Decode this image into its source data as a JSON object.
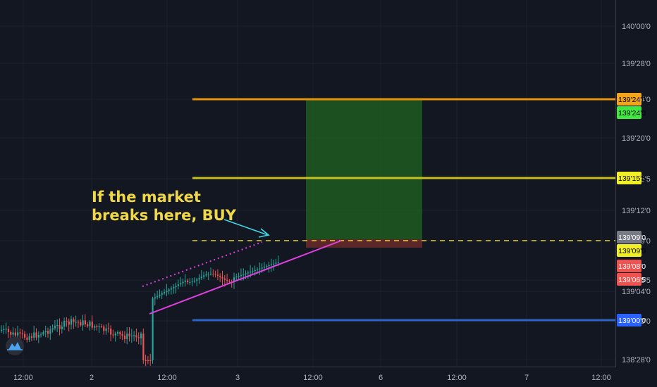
{
  "chart_data": {
    "type": "candlestick",
    "y_axis": {
      "ticks": [
        "140'00'0",
        "139'28'0",
        "139'24'0",
        "139'20'0",
        "139'15'5",
        "139'12'0",
        "139'09'0",
        "139'06'5",
        "139'04'0",
        "139'00'0",
        "138'28'0"
      ]
    },
    "x_axis": {
      "ticks": [
        "12:00",
        "2",
        "12:00",
        "3",
        "12:00",
        "6",
        "12:00",
        "7",
        "12:00"
      ]
    },
    "horizontal_levels": [
      {
        "name": "upper-target",
        "label": "139'24'0",
        "color": "#e8910a",
        "style": "solid"
      },
      {
        "name": "mid-target",
        "label": "139'15'5",
        "color": "#c8c21e",
        "style": "solid"
      },
      {
        "name": "entry",
        "label": "139'09'0",
        "color": "#e8d428",
        "style": "dashed"
      },
      {
        "name": "support",
        "label": "139'00'0",
        "color": "#2e63c6",
        "style": "solid"
      }
    ],
    "price_badges": [
      {
        "label": "139'24'0",
        "bg": "#f2a51a",
        "fg": "#000000"
      },
      {
        "label": "139'24'0",
        "bg": "#3ee83e",
        "fg": "#000000"
      },
      {
        "label": "139'15'5",
        "bg": "#f2ef24",
        "fg": "#000000"
      },
      {
        "label": "139'09'0",
        "bg": "#787b86",
        "fg": "#ffffff"
      },
      {
        "label": "139'09'0",
        "bg": "#f2ef24",
        "fg": "#000000"
      },
      {
        "label": "139'08'0",
        "bg": "#ef5350",
        "fg": "#ffffff"
      },
      {
        "label": "139'06'5",
        "bg": "#ef5350",
        "fg": "#ffffff"
      },
      {
        "label": "139'00'0",
        "bg": "#2962ff",
        "fg": "#ffffff"
      }
    ],
    "long_position": {
      "entry": "139'09'0",
      "target": "139'24'0",
      "profit_color": "#1e5a20",
      "stop_color": "#6b2a2a"
    },
    "annotation": {
      "lines": [
        "If the market",
        "breaks here, BUY"
      ],
      "color": "#f0d84a"
    },
    "trend_lines": [
      {
        "name": "rising-support",
        "color": "#e040e0",
        "style": "solid"
      },
      {
        "name": "rising-resistance",
        "color": "#e040e0",
        "style": "dotted"
      }
    ],
    "arrow_color": "#3fd6e6",
    "candle_colors": {
      "up": "#26a69a",
      "down": "#ef5350"
    },
    "grid": true
  }
}
